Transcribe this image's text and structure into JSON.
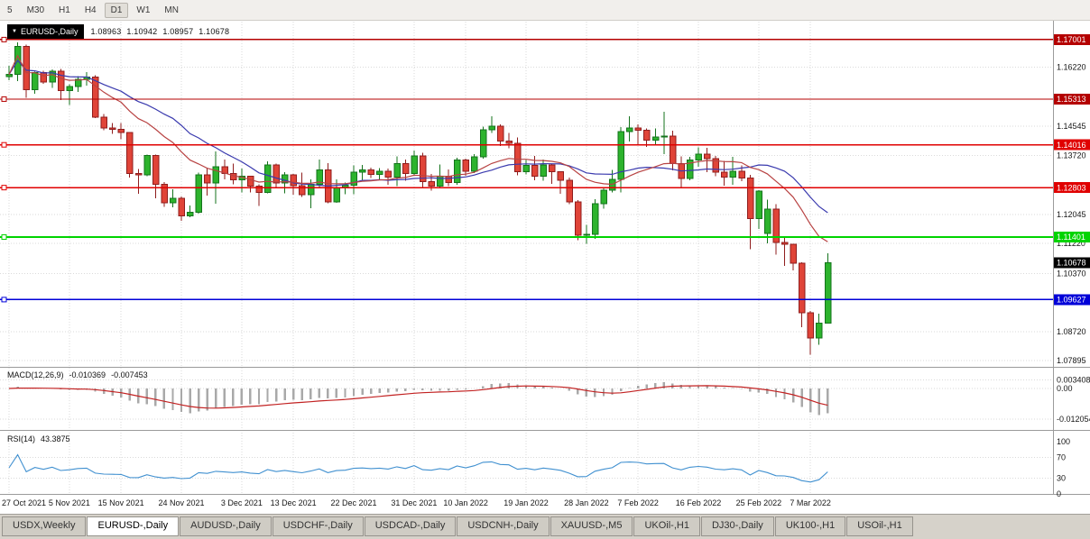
{
  "toolbar": {
    "timeframes": [
      {
        "label": "5",
        "active": false
      },
      {
        "label": "M30",
        "active": false
      },
      {
        "label": "H1",
        "active": false
      },
      {
        "label": "H4",
        "active": false
      },
      {
        "label": "D1",
        "active": true
      },
      {
        "label": "W1",
        "active": false
      },
      {
        "label": "MN",
        "active": false
      }
    ]
  },
  "symbol_box": {
    "label": "EURUSD-,Daily",
    "dropdown_icon": "▼"
  },
  "ohlc_readout": {
    "open": "1.08963",
    "high": "1.10942",
    "low": "1.08957",
    "close": "1.10678"
  },
  "indicators": {
    "macd": {
      "label": "MACD(12,26,9)",
      "main_value": "-0.010369",
      "signal_value": "-0.007453",
      "axis_labels": [
        "0.003408",
        "0.00",
        "-0.012054"
      ]
    },
    "rsi": {
      "label": "RSI(14)",
      "value": "43.3875",
      "axis_labels": [
        "100",
        "70",
        "30",
        "0"
      ],
      "levels": [
        70,
        30
      ]
    }
  },
  "price_axis": {
    "grid_labels": [
      {
        "value": 1.1622,
        "label": "1.16220"
      },
      {
        "value": 1.14545,
        "label": "1.14545"
      },
      {
        "value": 1.1372,
        "label": "1.13720"
      },
      {
        "value": 1.12045,
        "label": "1.12045"
      },
      {
        "value": 1.1122,
        "label": "1.11220"
      },
      {
        "value": 1.1037,
        "label": "1.10370"
      },
      {
        "value": 1.0872,
        "label": "1.08720"
      },
      {
        "value": 1.07895,
        "label": "1.07895"
      }
    ],
    "current_price": {
      "value": 1.10678,
      "label": "1.10678",
      "bg": "#000000",
      "fg": "#ffffff"
    }
  },
  "hlines": [
    {
      "value": 1.17001,
      "label": "1.17001",
      "color": "#b40000",
      "badge_fg": "#ffffff",
      "width": 1.4
    },
    {
      "value": 1.15313,
      "label": "1.15313",
      "color": "#b40000",
      "badge_fg": "#ffffff",
      "width": 1.4
    },
    {
      "value": 1.14016,
      "label": "1.14016",
      "color": "#e00000",
      "badge_fg": "#ffffff",
      "width": 1.4
    },
    {
      "value": 1.12803,
      "label": "1.12803",
      "color": "#e00000",
      "badge_fg": "#ffffff",
      "width": 1.4
    },
    {
      "value": 1.11401,
      "label": "1.11401",
      "color": "#00d400",
      "badge_fg": "#ffffff",
      "width": 1.6
    },
    {
      "value": 1.09627,
      "label": "1.09627",
      "color": "#0000d8",
      "badge_fg": "#ffffff",
      "width": 1.6
    }
  ],
  "date_axis": [
    {
      "index": 0,
      "label": "27 Oct 2021"
    },
    {
      "index": 7,
      "label": "5 Nov 2021"
    },
    {
      "index": 13,
      "label": "15 Nov 2021"
    },
    {
      "index": 20,
      "label": "24 Nov 2021"
    },
    {
      "index": 27,
      "label": "3 Dec 2021"
    },
    {
      "index": 33,
      "label": "13 Dec 2021"
    },
    {
      "index": 40,
      "label": "22 Dec 2021"
    },
    {
      "index": 47,
      "label": "31 Dec 2021"
    },
    {
      "index": 53,
      "label": "10 Jan 2022"
    },
    {
      "index": 60,
      "label": "19 Jan 2022"
    },
    {
      "index": 67,
      "label": "28 Jan 2022"
    },
    {
      "index": 73,
      "label": "7 Feb 2022"
    },
    {
      "index": 80,
      "label": "16 Feb 2022"
    },
    {
      "index": 87,
      "label": "25 Feb 2022"
    },
    {
      "index": 93,
      "label": "7 Mar 2022"
    }
  ],
  "tabs": [
    {
      "label": "USDX,Weekly",
      "active": false
    },
    {
      "label": "EURUSD-,Daily",
      "active": true
    },
    {
      "label": "AUDUSD-,Daily",
      "active": false
    },
    {
      "label": "USDCHF-,Daily",
      "active": false
    },
    {
      "label": "USDCAD-,Daily",
      "active": false
    },
    {
      "label": "USDCNH-,Daily",
      "active": false
    },
    {
      "label": "XAUUSD-,M5",
      "active": false
    },
    {
      "label": "UKOil-,H1",
      "active": false
    },
    {
      "label": "DJ30-,Daily",
      "active": false
    },
    {
      "label": "UK100-,H1",
      "active": false
    },
    {
      "label": "USOil-,H1",
      "active": false
    }
  ],
  "chart_data": {
    "type": "candlestick",
    "symbol": "EURUSD",
    "timeframe": "Daily",
    "title": "EURUSD-,Daily",
    "ohlc_current": {
      "open": 1.08963,
      "high": 1.10942,
      "low": 1.08957,
      "close": 1.10678
    },
    "y_range": [
      1.0772,
      1.1751
    ],
    "up_color": "#2db32d",
    "up_stroke": "#14731c",
    "down_color": "#e04438",
    "down_stroke": "#8f1d1d",
    "overlays": [
      {
        "name": "ma-slow",
        "type": "sma",
        "period": 20,
        "color": "#3a3aae"
      },
      {
        "name": "ma-fast",
        "type": "lwma",
        "period": 20,
        "color": "#b84343"
      }
    ],
    "indicators": [
      {
        "name": "MACD",
        "params": [
          12,
          26,
          9
        ],
        "current_main": -0.010369,
        "current_signal": -0.007453
      },
      {
        "name": "RSI",
        "params": [
          14
        ],
        "current": 43.3875
      }
    ],
    "support_resistance_levels": [
      1.17001,
      1.15313,
      1.14016,
      1.12803,
      1.11401,
      1.09627
    ],
    "candles": [
      [
        "27 Oct 2021",
        1.1595,
        1.1626,
        1.1585,
        1.1601
      ],
      [
        "28 Oct 2021",
        1.1601,
        1.1692,
        1.1582,
        1.1681
      ],
      [
        "29 Oct 2021",
        1.1681,
        1.1686,
        1.1535,
        1.1558
      ],
      [
        "1 Nov 2021",
        1.1558,
        1.1609,
        1.1546,
        1.1606
      ],
      [
        "2 Nov 2021",
        1.1606,
        1.1612,
        1.1575,
        1.158
      ],
      [
        "3 Nov 2021",
        1.158,
        1.1616,
        1.1563,
        1.1611
      ],
      [
        "4 Nov 2021",
        1.1611,
        1.1617,
        1.1528,
        1.1555
      ],
      [
        "5 Nov 2021",
        1.1555,
        1.1573,
        1.1514,
        1.1567
      ],
      [
        "8 Nov 2021",
        1.1567,
        1.1596,
        1.1552,
        1.1588
      ],
      [
        "9 Nov 2021",
        1.1588,
        1.1608,
        1.157,
        1.1594
      ],
      [
        "10 Nov 2021",
        1.1594,
        1.1599,
        1.1477,
        1.148
      ],
      [
        "11 Nov 2021",
        1.148,
        1.1489,
        1.1443,
        1.145
      ],
      [
        "12 Nov 2021",
        1.145,
        1.1463,
        1.1433,
        1.1445
      ],
      [
        "15 Nov 2021",
        1.1445,
        1.1464,
        1.1417,
        1.1437
      ],
      [
        "16 Nov 2021",
        1.1437,
        1.1438,
        1.1309,
        1.132
      ],
      [
        "17 Nov 2021",
        1.132,
        1.1333,
        1.1263,
        1.1316
      ],
      [
        "18 Nov 2021",
        1.1316,
        1.1374,
        1.1312,
        1.1372
      ],
      [
        "19 Nov 2021",
        1.1372,
        1.1374,
        1.125,
        1.1289
      ],
      [
        "22 Nov 2021",
        1.1289,
        1.1296,
        1.1226,
        1.1237
      ],
      [
        "23 Nov 2021",
        1.1237,
        1.1275,
        1.1225,
        1.125
      ],
      [
        "24 Nov 2021",
        1.125,
        1.1255,
        1.1186,
        1.12
      ],
      [
        "25 Nov 2021",
        1.12,
        1.123,
        1.1196,
        1.121
      ],
      [
        "26 Nov 2021",
        1.121,
        1.1323,
        1.1206,
        1.1317
      ],
      [
        "29 Nov 2021",
        1.1317,
        1.1337,
        1.1258,
        1.1293
      ],
      [
        "30 Nov 2021",
        1.1293,
        1.1383,
        1.1235,
        1.1339
      ],
      [
        "1 Dec 2021",
        1.1339,
        1.136,
        1.1304,
        1.132
      ],
      [
        "2 Dec 2021",
        1.132,
        1.1348,
        1.1289,
        1.1302
      ],
      [
        "3 Dec 2021",
        1.1302,
        1.1334,
        1.1267,
        1.1313
      ],
      [
        "6 Dec 2021",
        1.1313,
        1.1314,
        1.1267,
        1.1284
      ],
      [
        "7 Dec 2021",
        1.1284,
        1.1289,
        1.1228,
        1.1267
      ],
      [
        "8 Dec 2021",
        1.1267,
        1.1355,
        1.1264,
        1.1344
      ],
      [
        "9 Dec 2021",
        1.1344,
        1.1348,
        1.128,
        1.1294
      ],
      [
        "10 Dec 2021",
        1.1294,
        1.1324,
        1.1264,
        1.1317
      ],
      [
        "13 Dec 2021",
        1.1317,
        1.1319,
        1.126,
        1.1286
      ],
      [
        "14 Dec 2021",
        1.1286,
        1.1323,
        1.1254,
        1.126
      ],
      [
        "15 Dec 2021",
        1.126,
        1.1304,
        1.1222,
        1.129
      ],
      [
        "16 Dec 2021",
        1.129,
        1.136,
        1.1281,
        1.133
      ],
      [
        "17 Dec 2021",
        1.133,
        1.135,
        1.1236,
        1.124
      ],
      [
        "20 Dec 2021",
        1.124,
        1.1304,
        1.1237,
        1.128
      ],
      [
        "21 Dec 2021",
        1.128,
        1.1295,
        1.1262,
        1.1287
      ],
      [
        "22 Dec 2021",
        1.1287,
        1.1343,
        1.1262,
        1.1324
      ],
      [
        "23 Dec 2021",
        1.1324,
        1.1344,
        1.1303,
        1.133
      ],
      [
        "24 Dec 2021",
        1.133,
        1.1337,
        1.1308,
        1.1318
      ],
      [
        "27 Dec 2021",
        1.1318,
        1.1336,
        1.1301,
        1.1327
      ],
      [
        "28 Dec 2021",
        1.1327,
        1.1334,
        1.1288,
        1.131
      ],
      [
        "29 Dec 2021",
        1.131,
        1.1369,
        1.1285,
        1.1349
      ],
      [
        "30 Dec 2021",
        1.1349,
        1.136,
        1.13,
        1.132
      ],
      [
        "31 Dec 2021",
        1.132,
        1.1386,
        1.1317,
        1.137
      ],
      [
        "3 Jan 2022",
        1.137,
        1.1379,
        1.1279,
        1.1297
      ],
      [
        "4 Jan 2022",
        1.1297,
        1.1319,
        1.1272,
        1.1285
      ],
      [
        "5 Jan 2022",
        1.1285,
        1.1346,
        1.1282,
        1.1313
      ],
      [
        "6 Jan 2022",
        1.1313,
        1.1332,
        1.1285,
        1.1295
      ],
      [
        "7 Jan 2022",
        1.1295,
        1.1365,
        1.1288,
        1.1359
      ],
      [
        "10 Jan 2022",
        1.1359,
        1.1362,
        1.1314,
        1.1327
      ],
      [
        "11 Jan 2022",
        1.1327,
        1.1375,
        1.1321,
        1.1367
      ],
      [
        "12 Jan 2022",
        1.1367,
        1.1453,
        1.1362,
        1.1444
      ],
      [
        "13 Jan 2022",
        1.1444,
        1.1483,
        1.1435,
        1.1455
      ],
      [
        "14 Jan 2022",
        1.1455,
        1.1459,
        1.1398,
        1.1412
      ],
      [
        "17 Jan 2022",
        1.1412,
        1.1435,
        1.1392,
        1.1406
      ],
      [
        "18 Jan 2022",
        1.1406,
        1.1422,
        1.1315,
        1.1325
      ],
      [
        "19 Jan 2022",
        1.1325,
        1.1358,
        1.1318,
        1.1343
      ],
      [
        "20 Jan 2022",
        1.1343,
        1.137,
        1.1301,
        1.1313
      ],
      [
        "21 Jan 2022",
        1.1313,
        1.136,
        1.13,
        1.1344
      ],
      [
        "24 Jan 2022",
        1.1344,
        1.1349,
        1.1291,
        1.1325
      ],
      [
        "25 Jan 2022",
        1.1325,
        1.1327,
        1.1263,
        1.1301
      ],
      [
        "26 Jan 2022",
        1.1301,
        1.1309,
        1.1234,
        1.124
      ],
      [
        "27 Jan 2022",
        1.124,
        1.1245,
        1.1131,
        1.1145
      ],
      [
        "28 Jan 2022",
        1.1145,
        1.1174,
        1.1121,
        1.1148
      ],
      [
        "31 Jan 2022",
        1.1148,
        1.1248,
        1.1135,
        1.1235
      ],
      [
        "1 Feb 2022",
        1.1235,
        1.1279,
        1.1221,
        1.1273
      ],
      [
        "2 Feb 2022",
        1.1273,
        1.1331,
        1.1267,
        1.1304
      ],
      [
        "3 Feb 2022",
        1.1304,
        1.1452,
        1.1266,
        1.1439
      ],
      [
        "4 Feb 2022",
        1.1439,
        1.1483,
        1.1411,
        1.145
      ],
      [
        "7 Feb 2022",
        1.145,
        1.1459,
        1.14,
        1.1443
      ],
      [
        "8 Feb 2022",
        1.1443,
        1.1448,
        1.1396,
        1.1415
      ],
      [
        "9 Feb 2022",
        1.1415,
        1.1448,
        1.1403,
        1.1424
      ],
      [
        "10 Feb 2022",
        1.1424,
        1.1495,
        1.1375,
        1.1426
      ],
      [
        "11 Feb 2022",
        1.1426,
        1.1442,
        1.1329,
        1.1348
      ],
      [
        "14 Feb 2022",
        1.1348,
        1.1369,
        1.1278,
        1.1306
      ],
      [
        "15 Feb 2022",
        1.1306,
        1.1368,
        1.1301,
        1.1358
      ],
      [
        "16 Feb 2022",
        1.1358,
        1.1395,
        1.134,
        1.1375
      ],
      [
        "17 Feb 2022",
        1.1375,
        1.1393,
        1.1324,
        1.1362
      ],
      [
        "18 Feb 2022",
        1.1362,
        1.137,
        1.1312,
        1.1324
      ],
      [
        "21 Feb 2022",
        1.1324,
        1.1356,
        1.1286,
        1.131
      ],
      [
        "22 Feb 2022",
        1.131,
        1.1368,
        1.1288,
        1.1327
      ],
      [
        "23 Feb 2022",
        1.1327,
        1.1343,
        1.1299,
        1.1307
      ],
      [
        "24 Feb 2022",
        1.1307,
        1.1316,
        1.1106,
        1.1193
      ],
      [
        "25 Feb 2022",
        1.1193,
        1.1273,
        1.1163,
        1.127
      ],
      [
        "28 Feb 2022",
        1.115,
        1.1246,
        1.1122,
        1.1219
      ],
      [
        "1 Mar 2022",
        1.1219,
        1.1234,
        1.109,
        1.1125
      ],
      [
        "2 Mar 2022",
        1.1125,
        1.1139,
        1.1058,
        1.112
      ],
      [
        "3 Mar 2022",
        1.112,
        1.1121,
        1.1045,
        1.1066
      ],
      [
        "4 Mar 2022",
        1.1066,
        1.1069,
        1.0885,
        1.0926
      ],
      [
        "7 Mar 2022",
        1.0926,
        1.0931,
        1.0806,
        1.0854
      ],
      [
        "8 Mar 2022",
        1.0854,
        1.0923,
        1.0834,
        1.0896
      ],
      [
        "9 Mar 2022",
        1.08963,
        1.10942,
        1.08957,
        1.10678
      ]
    ]
  }
}
